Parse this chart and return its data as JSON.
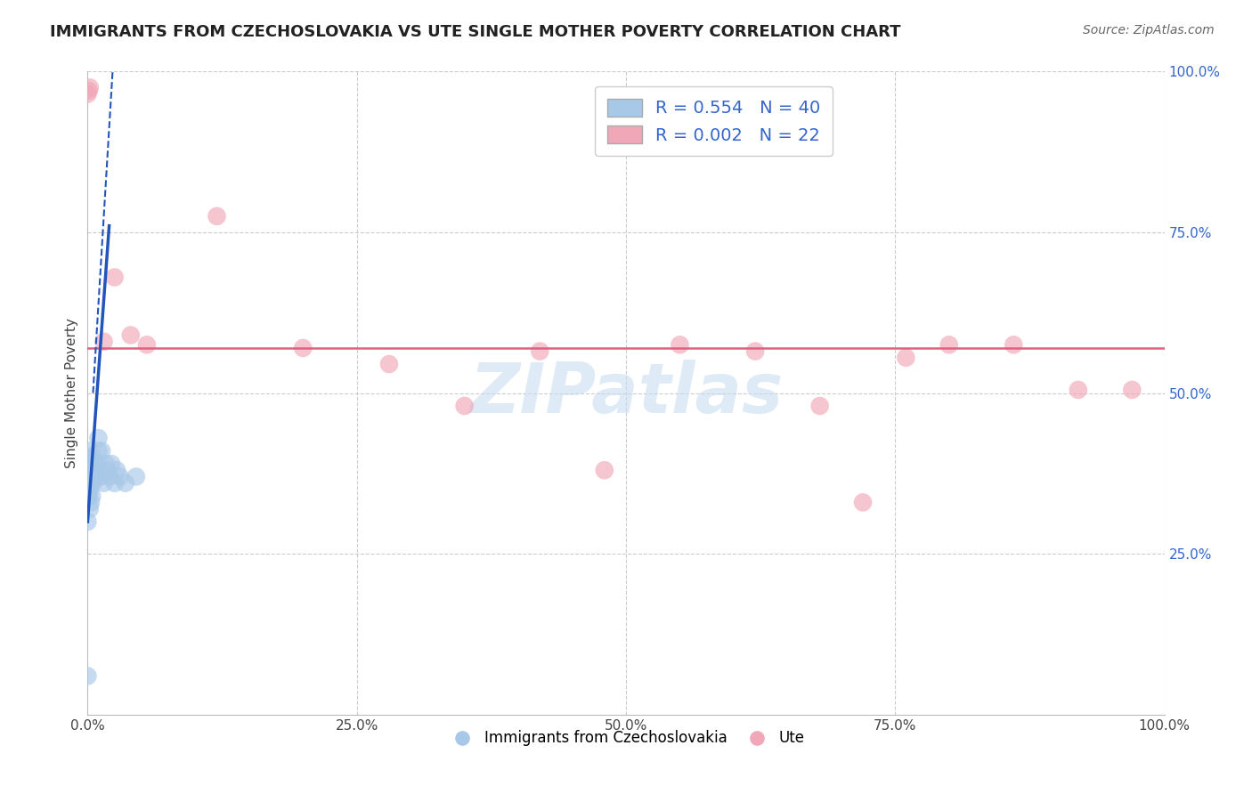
{
  "title": "IMMIGRANTS FROM CZECHOSLOVAKIA VS UTE SINGLE MOTHER POVERTY CORRELATION CHART",
  "source": "Source: ZipAtlas.com",
  "ylabel": "Single Mother Poverty",
  "blue_color": "#a8c8e8",
  "pink_color": "#f0a8b8",
  "trend_blue": "#2255bb",
  "trend_pink": "#e06080",
  "background": "#ffffff",
  "grid_color": "#cccccc",
  "blue_x": [
    0.0,
    0.0,
    0.0,
    0.0,
    0.0,
    0.001,
    0.001,
    0.001,
    0.001,
    0.001,
    0.002,
    0.002,
    0.002,
    0.002,
    0.003,
    0.003,
    0.003,
    0.004,
    0.004,
    0.005,
    0.005,
    0.006,
    0.006,
    0.007,
    0.008,
    0.009,
    0.01,
    0.01,
    0.012,
    0.013,
    0.015,
    0.017,
    0.018,
    0.02,
    0.022,
    0.025,
    0.027,
    0.03,
    0.035,
    0.045
  ],
  "blue_y": [
    0.06,
    0.3,
    0.34,
    0.36,
    0.38,
    0.34,
    0.36,
    0.37,
    0.39,
    0.41,
    0.32,
    0.35,
    0.37,
    0.4,
    0.33,
    0.36,
    0.39,
    0.34,
    0.38,
    0.36,
    0.4,
    0.37,
    0.39,
    0.38,
    0.37,
    0.39,
    0.41,
    0.43,
    0.37,
    0.41,
    0.36,
    0.39,
    0.38,
    0.37,
    0.39,
    0.36,
    0.38,
    0.37,
    0.36,
    0.37
  ],
  "pink_x": [
    0.0,
    0.001,
    0.002,
    0.015,
    0.025,
    0.04,
    0.055,
    0.12,
    0.2,
    0.28,
    0.35,
    0.42,
    0.48,
    0.55,
    0.62,
    0.68,
    0.72,
    0.76,
    0.8,
    0.86,
    0.92,
    0.97
  ],
  "pink_y": [
    0.965,
    0.97,
    0.975,
    0.58,
    0.68,
    0.59,
    0.575,
    0.775,
    0.57,
    0.545,
    0.48,
    0.565,
    0.38,
    0.575,
    0.565,
    0.48,
    0.33,
    0.555,
    0.575,
    0.575,
    0.505,
    0.505
  ],
  "xlim": [
    0.0,
    1.0
  ],
  "ylim": [
    0.0,
    1.0
  ],
  "xticks": [
    0.0,
    0.25,
    0.5,
    0.75,
    1.0
  ],
  "yticks": [
    0.0,
    0.25,
    0.5,
    0.75,
    1.0
  ],
  "xticklabels": [
    "0.0%",
    "25.0%",
    "50.0%",
    "75.0%",
    "100.0%"
  ],
  "right_yticklabels": [
    "",
    "25.0%",
    "50.0%",
    "75.0%",
    "100.0%"
  ],
  "watermark_text": "ZIPatlas",
  "watermark_color": "#c8ddf0",
  "legend_label1": "R = 0.554   N = 40",
  "legend_label2": "R = 0.002   N = 22",
  "legend_text_color": "#3366cc",
  "right_axis_color": "#3366cc",
  "title_fontsize": 13,
  "source_fontsize": 10
}
